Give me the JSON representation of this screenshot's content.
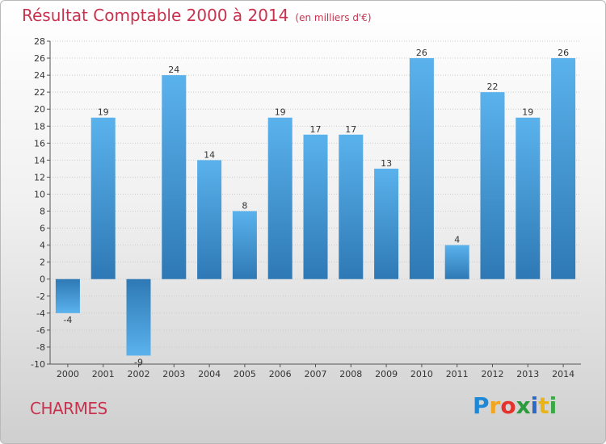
{
  "chart_data": {
    "type": "bar",
    "title": "Résultat Comptable 2000 à 2014",
    "subtitle": "(en milliers d'€)",
    "categories": [
      "2000",
      "2001",
      "2002",
      "2003",
      "2004",
      "2005",
      "2006",
      "2007",
      "2008",
      "2009",
      "2010",
      "2011",
      "2012",
      "2013",
      "2014"
    ],
    "values": [
      -4,
      19,
      -9,
      24,
      14,
      8,
      19,
      17,
      17,
      13,
      26,
      4,
      22,
      19,
      26
    ],
    "value_labels": [
      "-4",
      "19",
      "-9",
      "24",
      "14",
      "8",
      "19",
      "17",
      "17",
      "13",
      "26",
      "4",
      "22",
      "19",
      "26"
    ],
    "ylim": [
      -10,
      28
    ],
    "yticks": [
      -10,
      -8,
      -6,
      -4,
      -2,
      0,
      2,
      4,
      6,
      8,
      10,
      12,
      14,
      16,
      18,
      20,
      22,
      24,
      26,
      28
    ],
    "grid": true,
    "bar_color_light": "#5ab2ec",
    "bar_color_dark": "#2e79b5",
    "grid_color": "#cccccc"
  },
  "footer": {
    "town": "CHARMES",
    "logo_letters": [
      "P",
      "r",
      "o",
      "x",
      "i",
      "t",
      "i"
    ],
    "logo_colors": [
      "#1e88d6",
      "#f2a51f",
      "#e6322d",
      "#2d9a3e",
      "#2b68c8",
      "#e8b417",
      "#3aa844"
    ]
  }
}
